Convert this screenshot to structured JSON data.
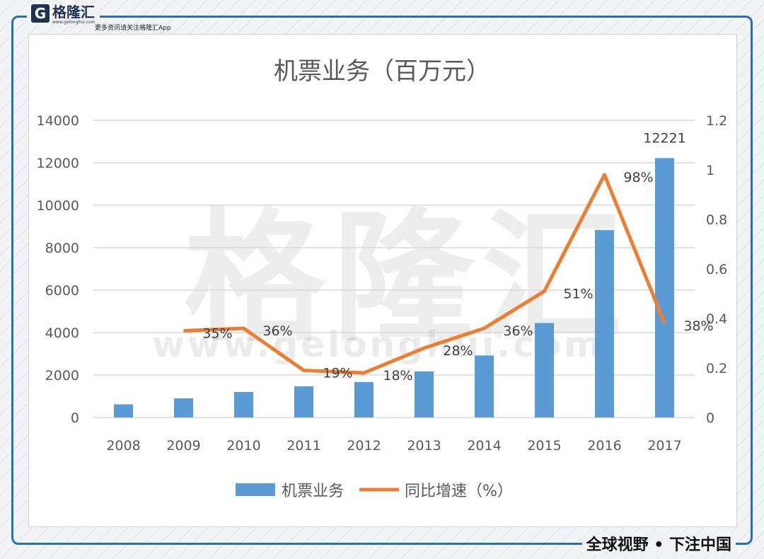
{
  "brand": {
    "logo_letter": "G",
    "name": "格隆汇",
    "url": "www.gelonghui.com",
    "tagline": "更多资讯请关注格隆汇App",
    "slogan": "全球视野 • 下注中国",
    "watermark": "格隆汇",
    "watermark_url": "www.gelonghui.com"
  },
  "chart_data": {
    "type": "bar+line",
    "title": "机票业务（百万元）",
    "categories": [
      "2008",
      "2009",
      "2010",
      "2011",
      "2012",
      "2013",
      "2014",
      "2015",
      "2016",
      "2017"
    ],
    "series": [
      {
        "name": "机票业务",
        "type": "bar",
        "axis": "left",
        "color": "#5b9bd5",
        "values": [
          620,
          900,
          1200,
          1470,
          1670,
          2170,
          2920,
          4450,
          8830,
          12221
        ],
        "data_labels": [
          null,
          null,
          null,
          null,
          null,
          null,
          null,
          null,
          null,
          "12221"
        ]
      },
      {
        "name": "同比增速（%）",
        "type": "line",
        "axis": "right",
        "color": "#ed7d31",
        "values": [
          null,
          0.35,
          0.36,
          0.19,
          0.18,
          0.28,
          0.36,
          0.51,
          0.98,
          0.38
        ],
        "data_labels": [
          null,
          "35%",
          "36%",
          "19%",
          "18%",
          "28%",
          "36%",
          "51%",
          "98%",
          "38%"
        ]
      }
    ],
    "y_left": {
      "range": [
        0,
        14000
      ],
      "ticks": [
        "0",
        "2000",
        "4000",
        "6000",
        "8000",
        "10000",
        "12000",
        "14000"
      ]
    },
    "y_right": {
      "range": [
        0,
        1.2
      ],
      "ticks": [
        "0",
        "0.2",
        "0.4",
        "0.6",
        "0.8",
        "1",
        "1.2"
      ]
    },
    "grid": true,
    "legend_position": "bottom"
  }
}
